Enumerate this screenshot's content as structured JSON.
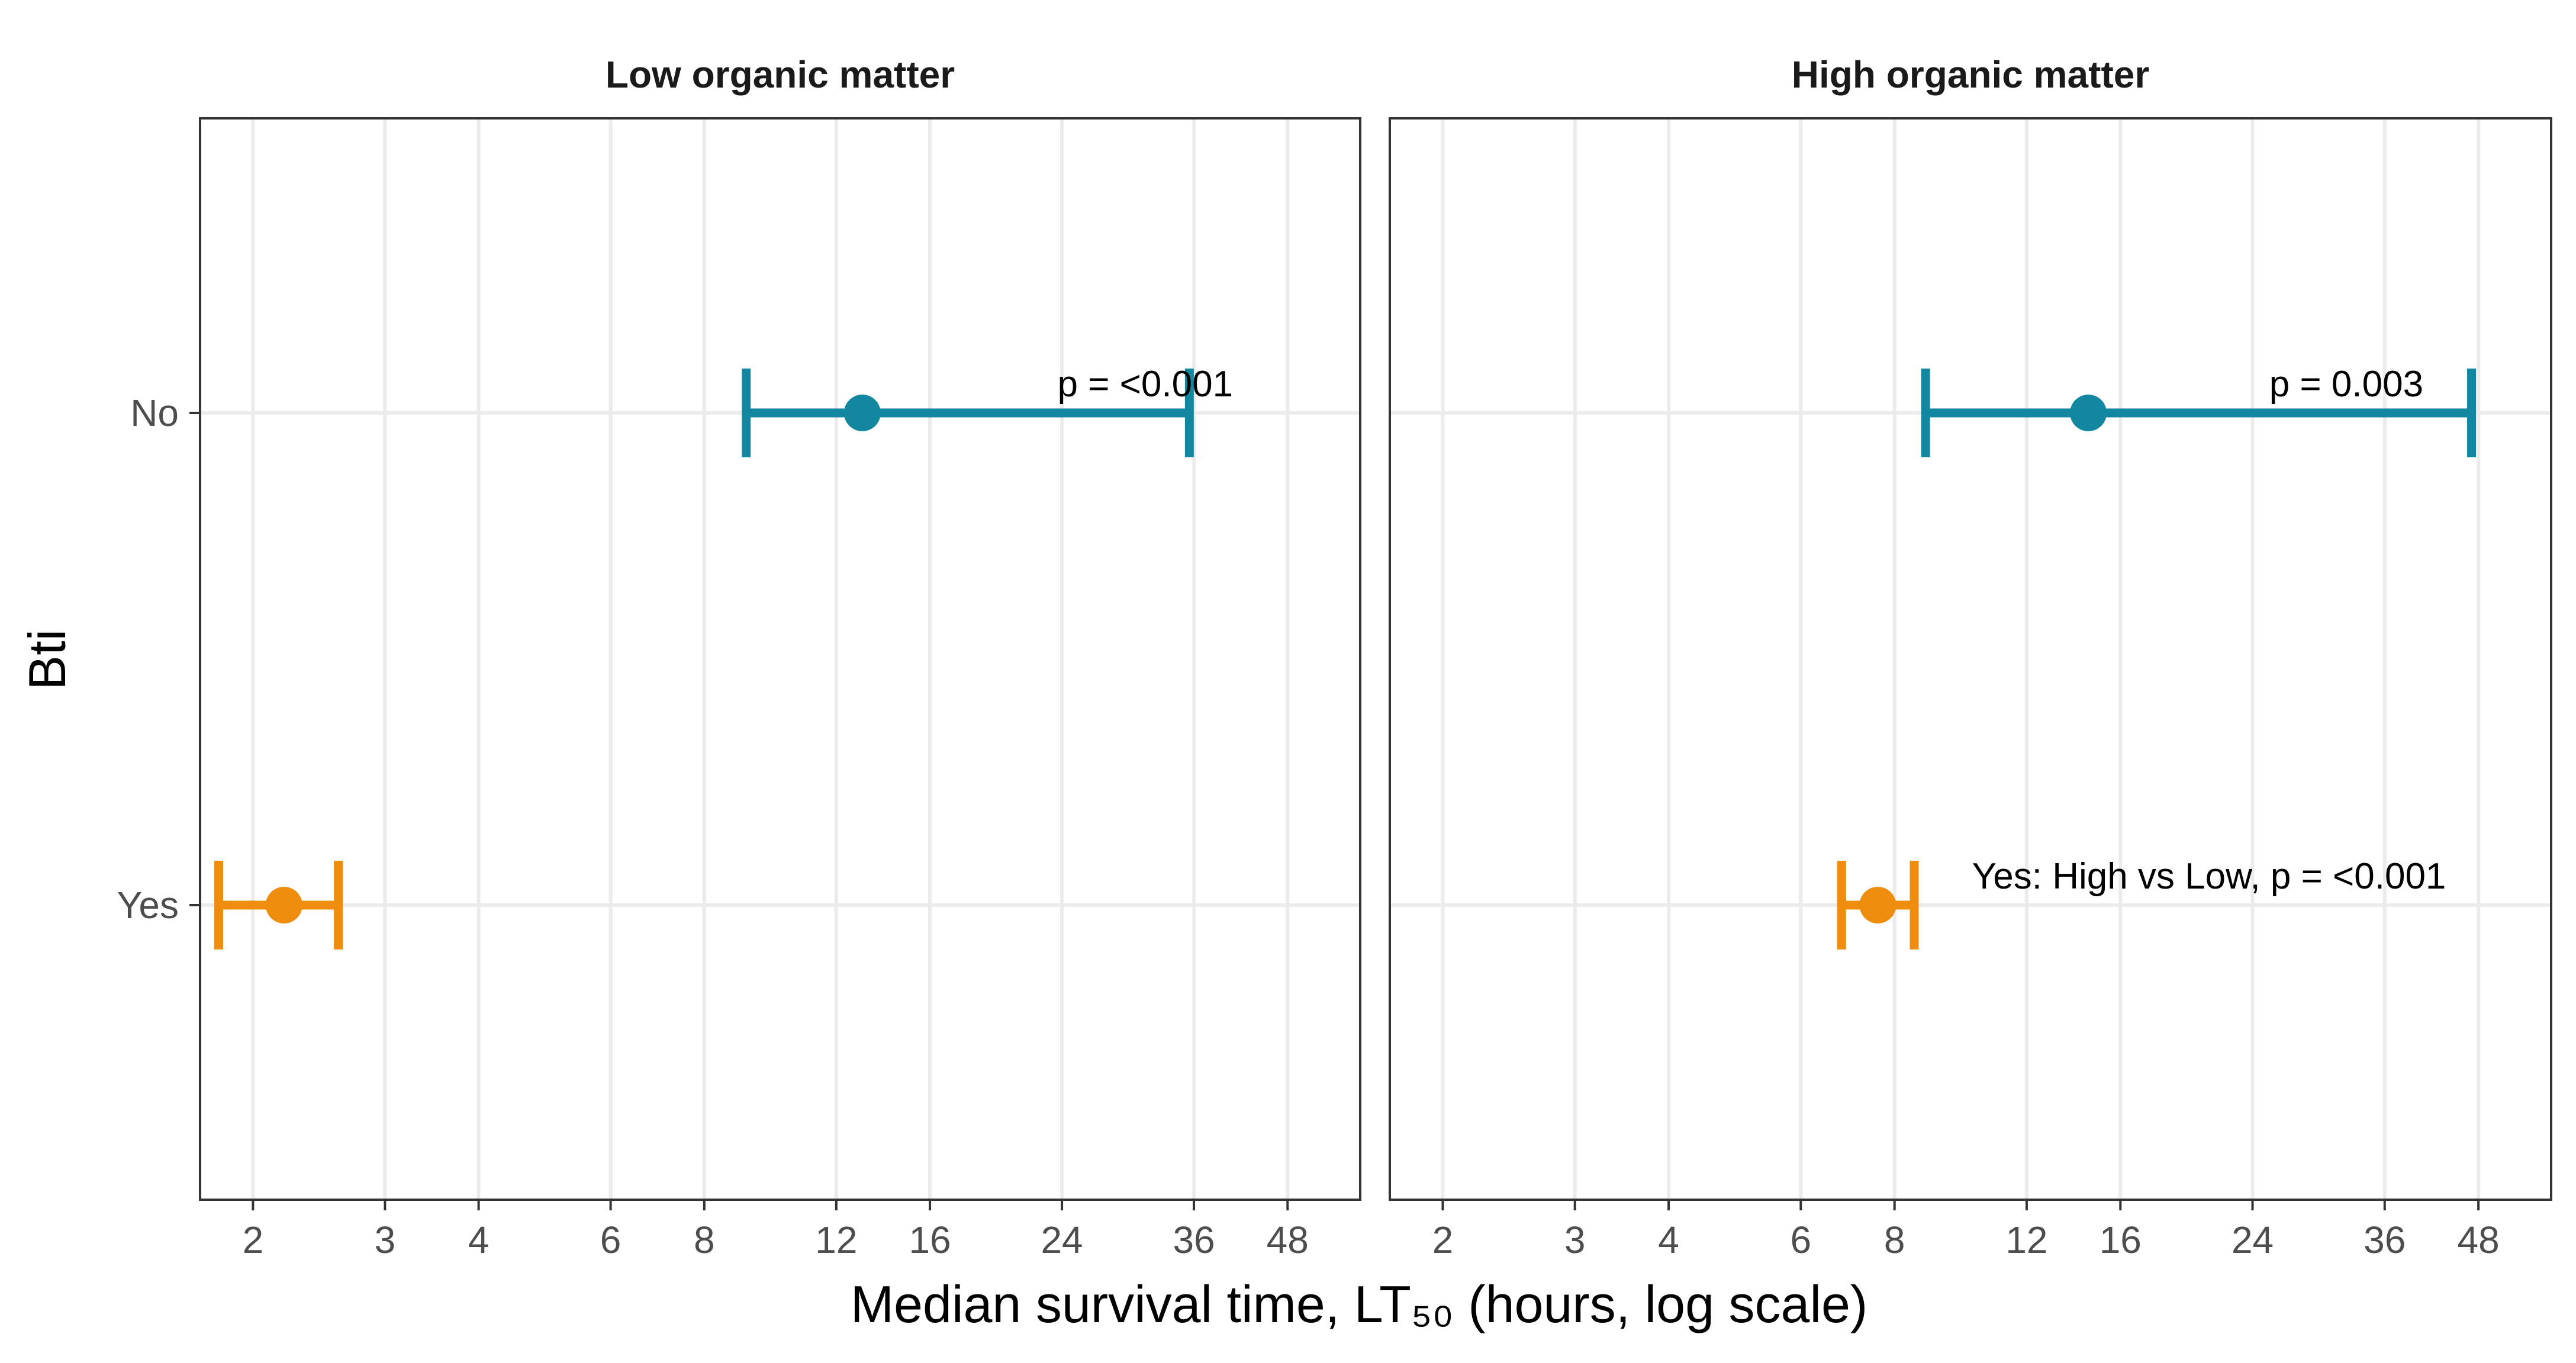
{
  "chart_data": {
    "type": "errorbar",
    "title": "",
    "xlabel": "Median survival time, LT₅₀ (hours, log scale)",
    "ylabel": "Bti",
    "x_scale": "log",
    "x_ticks": [
      2,
      3,
      4,
      6,
      8,
      12,
      16,
      24,
      36,
      48
    ],
    "xlim": [
      1.7,
      60
    ],
    "categories": [
      "No",
      "Yes"
    ],
    "grid": true,
    "colors": {
      "No": "#12879F",
      "Yes": "#EE8C0D"
    },
    "panels": [
      {
        "title": "Low organic matter",
        "points": [
          {
            "category": "No",
            "estimate": 13,
            "lower": 9.1,
            "upper": 35.5
          },
          {
            "category": "Yes",
            "estimate": 2.2,
            "lower": 1.8,
            "upper": 2.6
          }
        ],
        "annotations": [
          {
            "text": "p = <0.001",
            "category": "No",
            "x": 31
          }
        ]
      },
      {
        "title": "High organic matter",
        "points": [
          {
            "category": "No",
            "estimate": 14.5,
            "lower": 8.8,
            "upper": 47
          },
          {
            "category": "Yes",
            "estimate": 7.6,
            "lower": 6.8,
            "upper": 8.5
          }
        ],
        "annotations": [
          {
            "text": "p = 0.003",
            "category": "No",
            "x": 32
          },
          {
            "text": "Yes: High vs Low, p = <0.001",
            "category": "Yes",
            "x": 21
          }
        ]
      }
    ]
  }
}
